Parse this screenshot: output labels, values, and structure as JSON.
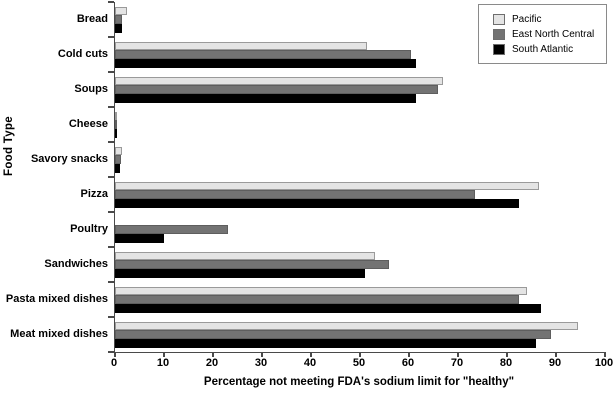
{
  "chart_data": {
    "type": "bar",
    "orientation": "horizontal",
    "xlabel": "Percentage not meeting FDA's sodium limit for \"healthy\"",
    "ylabel": "Food Type",
    "xlim": [
      0,
      100
    ],
    "xticks": [
      0,
      10,
      20,
      30,
      40,
      50,
      60,
      70,
      80,
      90,
      100
    ],
    "grid": false,
    "legend_position": "top-right",
    "axis_color": "#4a4a4a",
    "categories": [
      "Bread",
      "Cold cuts",
      "Soups",
      "Cheese",
      "Savory snacks",
      "Pizza",
      "Poultry",
      "Sandwiches",
      "Pasta mixed dishes",
      "Meat mixed dishes"
    ],
    "series": [
      {
        "name": "Pacific",
        "color": "#e4e4e4",
        "border_color": "#9a9a9a",
        "values": [
          2.5,
          51.5,
          67,
          0.2,
          1.5,
          86.5,
          0,
          53,
          84,
          94.5
        ]
      },
      {
        "name": "East North Central",
        "color": "#737373",
        "border_color": "#5e5e5e",
        "values": [
          1.5,
          60.5,
          66,
          0.2,
          1.3,
          73.5,
          23,
          56,
          82.5,
          89
        ]
      },
      {
        "name": "South Atlantic",
        "color": "#000000",
        "border_color": "#000000",
        "values": [
          1.5,
          61.5,
          61.5,
          0.2,
          1,
          82.5,
          10,
          51,
          87,
          86
        ]
      }
    ]
  }
}
